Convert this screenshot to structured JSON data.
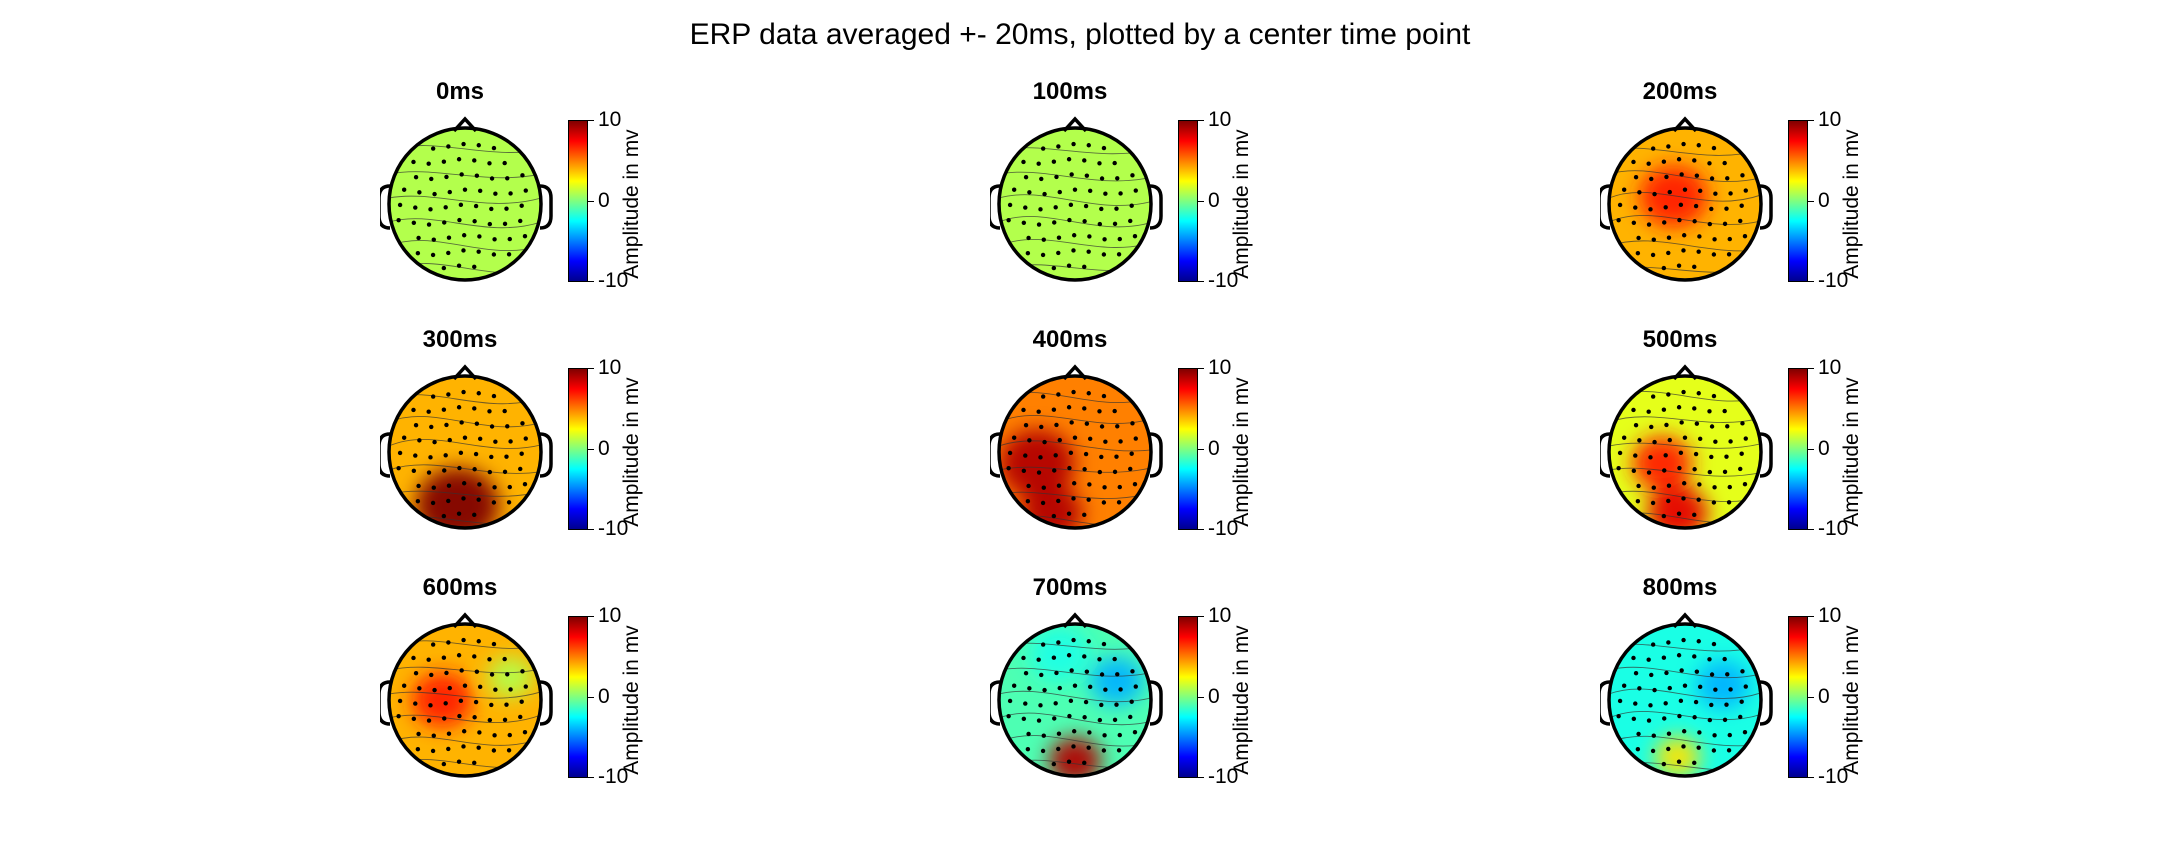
{
  "title": "ERP data averaged +- 20ms, plotted by a center time point",
  "chart_data": {
    "type": "heatmap",
    "title": "ERP data averaged +- 20ms, plotted by a center time point",
    "colormap": "jet",
    "colorbar": {
      "label": "Amplitude in mv",
      "min": -10,
      "max": 10,
      "ticks": [
        10,
        0,
        -10
      ]
    },
    "panels": [
      {
        "title": "0ms",
        "blobs": []
      },
      {
        "title": "100ms",
        "blobs": []
      },
      {
        "title": "200ms",
        "blobs": [
          {
            "x": -0.15,
            "y": 0.1,
            "v": 7,
            "s": 0.45
          }
        ]
      },
      {
        "title": "300ms",
        "blobs": [
          {
            "x": -0.1,
            "y": -0.7,
            "v": 10,
            "s": 0.55
          }
        ]
      },
      {
        "title": "400ms",
        "blobs": [
          {
            "x": -0.5,
            "y": -0.15,
            "v": 9,
            "s": 0.5
          },
          {
            "x": -0.3,
            "y": -0.8,
            "v": 9,
            "s": 0.4
          }
        ]
      },
      {
        "title": "500ms",
        "blobs": [
          {
            "x": -0.3,
            "y": -0.15,
            "v": 7,
            "s": 0.4
          },
          {
            "x": -0.1,
            "y": -0.8,
            "v": 8,
            "s": 0.4
          }
        ]
      },
      {
        "title": "600ms",
        "blobs": [
          {
            "x": -0.3,
            "y": 0.0,
            "v": 7,
            "s": 0.4
          },
          {
            "x": 0.6,
            "y": 0.3,
            "v": 1,
            "s": 0.3
          }
        ]
      },
      {
        "title": "700ms",
        "blobs": [
          {
            "x": 0.0,
            "y": -0.8,
            "v": 9,
            "s": 0.35
          },
          {
            "x": 0.55,
            "y": 0.25,
            "v": -4,
            "s": 0.35
          },
          {
            "x": -0.2,
            "y": 0.6,
            "v": -2,
            "s": 0.4
          }
        ]
      },
      {
        "title": "800ms",
        "blobs": [
          {
            "x": 0.5,
            "y": 0.2,
            "v": -4,
            "s": 0.35
          },
          {
            "x": -0.1,
            "y": -0.75,
            "v": 3,
            "s": 0.3
          }
        ]
      }
    ],
    "base_values": [
      1,
      1,
      4,
      4,
      5,
      2,
      4,
      -1,
      -2
    ]
  }
}
